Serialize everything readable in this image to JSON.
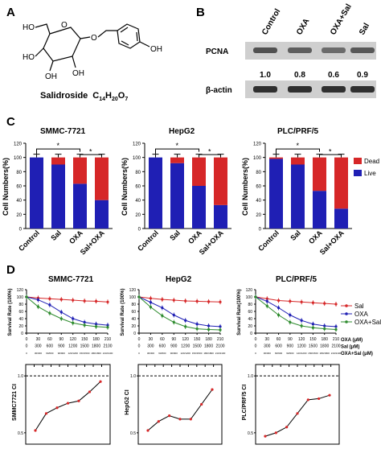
{
  "panels": {
    "A": "A",
    "B": "B",
    "C": "C",
    "D": "D"
  },
  "molecule": {
    "name": "Salidroside",
    "formula": "C14H20O7",
    "formula_parts": {
      "c": "C",
      "c_n": "14",
      "h": "H",
      "h_n": "20",
      "o": "O",
      "o_n": "7"
    },
    "atoms": [
      "HO",
      "O",
      "O",
      "HO",
      "OH",
      "OH",
      "OH"
    ]
  },
  "blot": {
    "columns": [
      "Control",
      "OXA",
      "OXA+Sal",
      "Sal"
    ],
    "row_labels": [
      "PCNA",
      "β-actin"
    ],
    "pcna_values": [
      "1.0",
      "0.8",
      "0.6",
      "0.9"
    ],
    "band_colors": {
      "pcna": "#4a4a4a",
      "actin": "#303030",
      "bg": "#cfcfcf"
    }
  },
  "colors": {
    "dead": "#d62728",
    "live": "#1f1fb4",
    "sal": "#d62728",
    "oxa": "#1f1fb4",
    "oxa_sal": "#2e8b2e"
  },
  "cell_counts": {
    "categories": [
      "Control",
      "Sal",
      "OXA",
      "Sal+OXA"
    ],
    "ylabel": "Cell Numbers(%)",
    "yticks": [
      "0",
      "20",
      "40",
      "60",
      "80",
      "100",
      "120"
    ],
    "legend": [
      "Dead",
      "Live"
    ],
    "sig": "*"
  },
  "survival": {
    "ylabel": "Survival Rate (100%)",
    "ylabel_alt": "Survival Rate(100%)",
    "xticks": [
      "0",
      "300",
      "600",
      "900",
      "1200",
      "1500",
      "1800",
      "2100"
    ],
    "yticks": [
      "0",
      "20",
      "40",
      "60",
      "80",
      "100",
      "120"
    ],
    "legend": [
      "Sal",
      "OXA",
      "OXA+Sal"
    ],
    "dose_rows": [
      {
        "values": [
          "0",
          "30",
          "60",
          "90",
          "120",
          "150",
          "180",
          "210"
        ],
        "label": "OXA (μM)"
      },
      {
        "values": [
          "0",
          "300",
          "600",
          "900",
          "1200",
          "1500",
          "1800",
          "2100"
        ],
        "label": "Sal (μM)"
      },
      {
        "values": [
          "0",
          "30/300",
          "60/600",
          "90/900",
          "120/1200",
          "150/1500",
          "180/1800",
          "210/2100"
        ],
        "label": "OXA+Sal (μM)"
      }
    ]
  },
  "ci": {
    "ylabels": [
      "SMMC7721 CI",
      "HepG2 CI",
      "PLC/PRF/5 CI"
    ],
    "ticks": [
      "0.5",
      "1.0"
    ]
  },
  "chart_data": [
    {
      "type": "bar",
      "stacked": true,
      "title": "SMMC-7721",
      "categories": [
        "Control",
        "Sal",
        "OXA",
        "Sal+OXA"
      ],
      "series": [
        {
          "name": "Live",
          "values": [
            100,
            90,
            63,
            40
          ]
        },
        {
          "name": "Dead",
          "values": [
            0,
            10,
            37,
            60
          ]
        }
      ],
      "ylabel": "Cell Numbers(%)",
      "ylim": [
        0,
        120
      ],
      "legend_position": "right"
    },
    {
      "type": "bar",
      "stacked": true,
      "title": "HepG2",
      "categories": [
        "Control",
        "Sal",
        "OXA",
        "Sal+OXA"
      ],
      "series": [
        {
          "name": "Live",
          "values": [
            100,
            92,
            60,
            33
          ]
        },
        {
          "name": "Dead",
          "values": [
            0,
            8,
            40,
            67
          ]
        }
      ],
      "ylabel": "Cell Numbers(%)",
      "ylim": [
        0,
        120
      ]
    },
    {
      "type": "bar",
      "stacked": true,
      "title": "PLC/PRF/5",
      "categories": [
        "Control",
        "Sal",
        "OXA",
        "Sal+OXA"
      ],
      "series": [
        {
          "name": "Live",
          "values": [
            98,
            90,
            53,
            28
          ]
        },
        {
          "name": "Dead",
          "values": [
            2,
            10,
            47,
            72
          ]
        }
      ],
      "ylabel": "Cell Numbers(%)",
      "ylim": [
        0,
        120
      ]
    },
    {
      "type": "line",
      "title": "SMMC-7721",
      "x": [
        0,
        300,
        600,
        900,
        1200,
        1500,
        1800,
        2100
      ],
      "series": [
        {
          "name": "Sal",
          "values": [
            100,
            97,
            95,
            93,
            91,
            89,
            88,
            86
          ]
        },
        {
          "name": "OXA",
          "values": [
            100,
            92,
            78,
            58,
            40,
            30,
            25,
            22
          ]
        },
        {
          "name": "OXA+Sal",
          "values": [
            100,
            73,
            55,
            40,
            28,
            22,
            18,
            16
          ]
        }
      ],
      "ylabel": "Survival Rate (100%)",
      "ylim": [
        0,
        120
      ],
      "xlim": [
        0,
        2100
      ],
      "legend_position": "right"
    },
    {
      "type": "line",
      "title": "HepG2",
      "x": [
        0,
        300,
        600,
        900,
        1200,
        1500,
        1800,
        2100
      ],
      "series": [
        {
          "name": "Sal",
          "values": [
            100,
            96,
            93,
            91,
            89,
            88,
            87,
            86
          ]
        },
        {
          "name": "OXA",
          "values": [
            100,
            85,
            70,
            50,
            35,
            25,
            20,
            18
          ]
        },
        {
          "name": "OXA+Sal",
          "values": [
            100,
            72,
            48,
            30,
            18,
            12,
            10,
            9
          ]
        }
      ],
      "ylabel": "Survival Rate (100%)",
      "ylim": [
        0,
        120
      ],
      "xlim": [
        0,
        2100
      ]
    },
    {
      "type": "line",
      "title": "PLC/PRF/5",
      "x": [
        0,
        300,
        600,
        900,
        1200,
        1500,
        1800,
        2100
      ],
      "series": [
        {
          "name": "Sal",
          "values": [
            100,
            95,
            90,
            88,
            86,
            84,
            82,
            80
          ]
        },
        {
          "name": "OXA",
          "values": [
            100,
            88,
            70,
            50,
            35,
            25,
            20,
            18
          ]
        },
        {
          "name": "OXA+Sal",
          "values": [
            100,
            75,
            50,
            30,
            20,
            15,
            12,
            10
          ]
        }
      ],
      "ylabel": "Survival Rate(100%)",
      "ylim": [
        0,
        120
      ],
      "xlim": [
        0,
        2100
      ]
    },
    {
      "type": "line",
      "title": "SMMC7721 CI",
      "series": [
        {
          "name": "CI",
          "values": [
            0.52,
            0.67,
            0.72,
            0.76,
            0.78,
            0.86,
            0.95
          ]
        }
      ],
      "reference_line": 1.0,
      "ylim": [
        0.4,
        1.1
      ],
      "yticks": [
        0.5,
        1.0
      ]
    },
    {
      "type": "line",
      "title": "HepG2 CI",
      "series": [
        {
          "name": "CI",
          "values": [
            0.52,
            0.6,
            0.65,
            0.62,
            0.62,
            0.75,
            0.88
          ]
        }
      ],
      "reference_line": 1.0,
      "ylim": [
        0.4,
        1.1
      ],
      "yticks": [
        0.5,
        1.0
      ]
    },
    {
      "type": "line",
      "title": "PLC/PRF/5 CI",
      "series": [
        {
          "name": "CI",
          "values": [
            0.47,
            0.5,
            0.55,
            0.67,
            0.79,
            0.8,
            0.83
          ]
        }
      ],
      "reference_line": 1.0,
      "ylim": [
        0.4,
        1.1
      ],
      "yticks": [
        0.5,
        1.0
      ]
    }
  ]
}
